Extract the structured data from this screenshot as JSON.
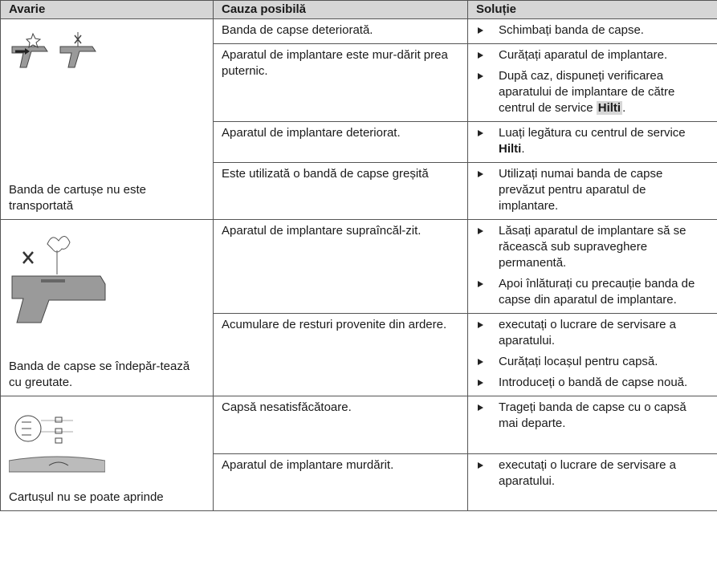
{
  "header": {
    "fault": "Avarie",
    "cause": "Cauza posibilă",
    "solution": "Soluție"
  },
  "rows": [
    {
      "fault": "Banda de cartușe nu este transportată",
      "causes": [
        {
          "cause": "Banda de capse deteriorată.",
          "solutions": [
            {
              "text": "Schimbați banda de capse."
            }
          ]
        },
        {
          "cause": "Aparatul de implantare este mur-dărit prea puternic.",
          "solutions": [
            {
              "text": "Curățați aparatul de implantare."
            },
            {
              "text": "După caz, dispuneți verificarea aparatului de implantare de către centrul de service ",
              "brand": "Hilti",
              "end": "."
            }
          ]
        },
        {
          "cause": "Aparatul de implantare deteriorat.",
          "solutions": [
            {
              "text": "Luați legătura cu centrul de service ",
              "brand": "Hilti",
              "end": "."
            }
          ]
        },
        {
          "cause": "Este utilizată o bandă de capse greșită",
          "solutions": [
            {
              "text": "Utilizați numai banda de capse prevăzut pentru aparatul de implantare."
            }
          ]
        }
      ]
    },
    {
      "fault": "Banda de capse se îndepăr-tează cu greutate.",
      "causes": [
        {
          "cause": "Aparatul de implantare supraîncăl-zit.",
          "solutions": [
            {
              "text": "Lăsați aparatul de implantare să se răcească sub supraveghere permanentă."
            },
            {
              "text": "Apoi înlăturați cu precauție banda de capse din aparatul de implantare."
            }
          ]
        },
        {
          "cause": "Acumulare de resturi provenite din ardere.",
          "solutions": [
            {
              "text": "executați o lucrare de servisare a aparatului."
            },
            {
              "text": "Curățați locașul pentru capsă."
            },
            {
              "text": "Introduceți o bandă de capse nouă."
            }
          ]
        }
      ]
    },
    {
      "fault": "Cartușul nu se poate aprinde",
      "causes": [
        {
          "cause": "Capsă nesatisfăcătoare.",
          "solutions": [
            {
              "text": "Trageți banda de capse cu o capsă mai departe."
            }
          ]
        },
        {
          "cause": "Aparatul de implantare murdărit.",
          "solutions": [
            {
              "text": "executați o lucrare de servisare a aparatului."
            }
          ]
        }
      ]
    }
  ]
}
